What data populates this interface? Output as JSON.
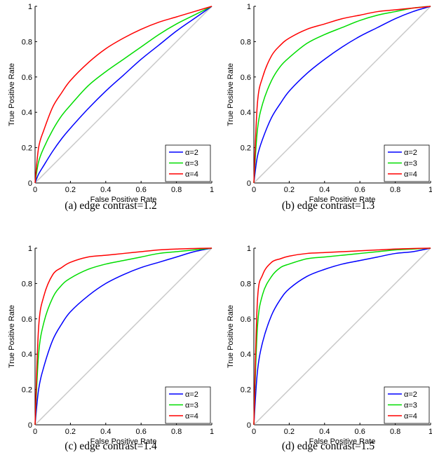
{
  "chart_data": [
    {
      "type": "line",
      "caption": "(a) edge contrast=1.2",
      "xlabel": "False Positive Rate",
      "ylabel": "True Positive Rate",
      "xlim": [
        0,
        1
      ],
      "ylim": [
        0,
        1
      ],
      "xticks": [
        "0",
        "0.2",
        "0.4",
        "0.6",
        "0.8",
        "1"
      ],
      "yticks": [
        "0",
        "0.2",
        "0.4",
        "0.6",
        "0.8",
        "1"
      ],
      "legend_position": "bottom-right",
      "diagonal": true,
      "series": [
        {
          "name": "α=2",
          "color": "#0000ff",
          "x": [
            0,
            0.02,
            0.05,
            0.1,
            0.15,
            0.2,
            0.3,
            0.4,
            0.5,
            0.6,
            0.7,
            0.8,
            0.9,
            1
          ],
          "y": [
            0,
            0.05,
            0.1,
            0.18,
            0.25,
            0.31,
            0.42,
            0.52,
            0.61,
            0.7,
            0.78,
            0.86,
            0.93,
            1
          ]
        },
        {
          "name": "α=3",
          "color": "#00dd00",
          "x": [
            0,
            0.02,
            0.05,
            0.1,
            0.15,
            0.2,
            0.3,
            0.4,
            0.5,
            0.6,
            0.7,
            0.8,
            0.9,
            1
          ],
          "y": [
            0,
            0.12,
            0.2,
            0.3,
            0.38,
            0.44,
            0.55,
            0.63,
            0.7,
            0.77,
            0.84,
            0.9,
            0.95,
            1
          ]
        },
        {
          "name": "α=4",
          "color": "#ff0000",
          "x": [
            0,
            0.02,
            0.05,
            0.1,
            0.15,
            0.2,
            0.3,
            0.4,
            0.5,
            0.6,
            0.7,
            0.8,
            0.9,
            1
          ],
          "y": [
            0,
            0.2,
            0.3,
            0.43,
            0.51,
            0.58,
            0.68,
            0.76,
            0.82,
            0.87,
            0.91,
            0.94,
            0.97,
            1
          ]
        }
      ]
    },
    {
      "type": "line",
      "caption": "(b) edge contrast=1.3",
      "xlabel": "False Positive Rate",
      "ylabel": "True Positive Rate",
      "xlim": [
        0,
        1
      ],
      "ylim": [
        0,
        1
      ],
      "xticks": [
        "0",
        "0.2",
        "0.4",
        "0.6",
        "0.8",
        "1"
      ],
      "yticks": [
        "0",
        "0.2",
        "0.4",
        "0.6",
        "0.8",
        "1"
      ],
      "legend_position": "bottom-right",
      "diagonal": true,
      "series": [
        {
          "name": "α=2",
          "color": "#0000ff",
          "x": [
            0,
            0.02,
            0.05,
            0.1,
            0.15,
            0.2,
            0.3,
            0.4,
            0.5,
            0.6,
            0.7,
            0.8,
            0.9,
            1
          ],
          "y": [
            0,
            0.15,
            0.25,
            0.37,
            0.45,
            0.52,
            0.62,
            0.7,
            0.77,
            0.83,
            0.88,
            0.93,
            0.97,
            1
          ]
        },
        {
          "name": "α=3",
          "color": "#00dd00",
          "x": [
            0,
            0.02,
            0.05,
            0.1,
            0.15,
            0.2,
            0.3,
            0.4,
            0.5,
            0.6,
            0.7,
            0.8,
            0.9,
            1
          ],
          "y": [
            0,
            0.3,
            0.45,
            0.58,
            0.66,
            0.71,
            0.79,
            0.84,
            0.88,
            0.92,
            0.95,
            0.97,
            0.99,
            1
          ]
        },
        {
          "name": "α=4",
          "color": "#ff0000",
          "x": [
            0,
            0.02,
            0.05,
            0.1,
            0.15,
            0.2,
            0.3,
            0.4,
            0.5,
            0.6,
            0.7,
            0.8,
            0.9,
            1
          ],
          "y": [
            0,
            0.45,
            0.6,
            0.72,
            0.78,
            0.82,
            0.87,
            0.9,
            0.93,
            0.95,
            0.97,
            0.98,
            0.99,
            1
          ]
        }
      ]
    },
    {
      "type": "line",
      "caption": "(c) edge contrast=1.4",
      "xlabel": "False Positive Rate",
      "ylabel": "True Positive Rate",
      "xlim": [
        0,
        1
      ],
      "ylim": [
        0,
        1
      ],
      "xticks": [
        "0",
        "0.2",
        "0.4",
        "0.6",
        "0.8",
        "1"
      ],
      "yticks": [
        "0",
        "0.2",
        "0.4",
        "0.6",
        "0.8",
        "1"
      ],
      "legend_position": "bottom-right",
      "diagonal": true,
      "series": [
        {
          "name": "α=2",
          "color": "#0000ff",
          "x": [
            0,
            0.02,
            0.05,
            0.1,
            0.15,
            0.2,
            0.3,
            0.4,
            0.5,
            0.6,
            0.7,
            0.8,
            0.9,
            1
          ],
          "y": [
            0,
            0.2,
            0.33,
            0.48,
            0.57,
            0.64,
            0.73,
            0.8,
            0.85,
            0.89,
            0.92,
            0.95,
            0.98,
            1
          ]
        },
        {
          "name": "α=3",
          "color": "#00dd00",
          "x": [
            0,
            0.02,
            0.05,
            0.1,
            0.15,
            0.2,
            0.3,
            0.4,
            0.5,
            0.6,
            0.7,
            0.8,
            0.9,
            1
          ],
          "y": [
            0,
            0.4,
            0.58,
            0.72,
            0.79,
            0.83,
            0.88,
            0.91,
            0.93,
            0.95,
            0.97,
            0.98,
            0.99,
            1
          ]
        },
        {
          "name": "α=4",
          "color": "#ff0000",
          "x": [
            0,
            0.02,
            0.05,
            0.1,
            0.15,
            0.2,
            0.3,
            0.4,
            0.5,
            0.6,
            0.7,
            0.8,
            0.9,
            1
          ],
          "y": [
            0,
            0.55,
            0.73,
            0.85,
            0.89,
            0.92,
            0.95,
            0.96,
            0.97,
            0.98,
            0.99,
            0.995,
            0.998,
            1
          ]
        }
      ]
    },
    {
      "type": "line",
      "caption": "(d) edge contrast=1.5",
      "xlabel": "False Positive Rate",
      "ylabel": "True Positive Rate",
      "xlim": [
        0,
        1
      ],
      "ylim": [
        0,
        1
      ],
      "xticks": [
        "0",
        "0.2",
        "0.4",
        "0.6",
        "0.8",
        "1"
      ],
      "yticks": [
        "0",
        "0.2",
        "0.4",
        "0.6",
        "0.8",
        "1"
      ],
      "legend_position": "bottom-right",
      "diagonal": true,
      "series": [
        {
          "name": "α=2",
          "color": "#0000ff",
          "x": [
            0,
            0.02,
            0.05,
            0.1,
            0.15,
            0.2,
            0.3,
            0.4,
            0.5,
            0.6,
            0.7,
            0.8,
            0.9,
            1
          ],
          "y": [
            0,
            0.3,
            0.47,
            0.62,
            0.71,
            0.77,
            0.84,
            0.88,
            0.91,
            0.93,
            0.95,
            0.97,
            0.98,
            1
          ]
        },
        {
          "name": "α=3",
          "color": "#00dd00",
          "x": [
            0,
            0.02,
            0.05,
            0.1,
            0.15,
            0.2,
            0.3,
            0.4,
            0.5,
            0.6,
            0.7,
            0.8,
            0.9,
            1
          ],
          "y": [
            0,
            0.55,
            0.74,
            0.84,
            0.89,
            0.91,
            0.94,
            0.95,
            0.96,
            0.97,
            0.98,
            0.99,
            0.995,
            1
          ]
        },
        {
          "name": "α=4",
          "color": "#ff0000",
          "x": [
            0,
            0.02,
            0.05,
            0.1,
            0.15,
            0.2,
            0.3,
            0.4,
            0.5,
            0.6,
            0.7,
            0.8,
            0.9,
            1
          ],
          "y": [
            0,
            0.7,
            0.85,
            0.92,
            0.94,
            0.955,
            0.97,
            0.975,
            0.98,
            0.985,
            0.99,
            0.995,
            0.998,
            1
          ]
        }
      ]
    }
  ]
}
